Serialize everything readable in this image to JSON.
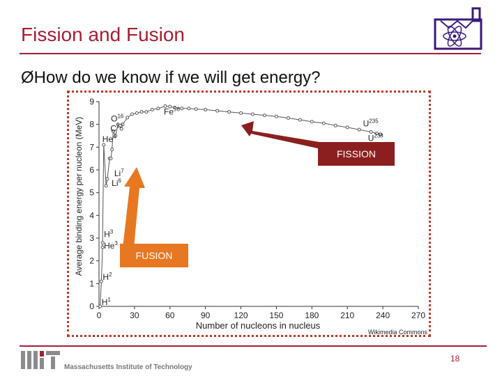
{
  "slide": {
    "title": "Fission and Fusion",
    "bullet_marker": "Ø",
    "bullet_text": "How do we know if we will get energy?",
    "attribution": "Wikimedia Commons",
    "page_number": "18",
    "footer_org": "Massachusetts Institute of Technology",
    "accent_color": "#a31f34"
  },
  "callouts": {
    "fission_label": "FISSION",
    "fusion_label": "FUSION",
    "fission_color": "#8b1f1f",
    "fusion_color": "#e87722"
  },
  "chart_data": {
    "type": "scatter",
    "xlabel": "Number of nucleons in nucleus",
    "ylabel": "Average binding energy per nucleon (MeV)",
    "xlim": [
      0,
      270
    ],
    "ylim": [
      0,
      9
    ],
    "xticks": [
      0,
      30,
      60,
      90,
      120,
      150,
      180,
      210,
      240,
      270
    ],
    "yticks": [
      0,
      1,
      2,
      3,
      4,
      5,
      6,
      7,
      8,
      9
    ],
    "x": [
      1,
      2,
      3,
      3,
      4,
      6,
      7,
      9,
      10,
      11,
      12,
      14,
      16,
      19,
      20,
      24,
      28,
      32,
      36,
      40,
      45,
      50,
      56,
      60,
      64,
      70,
      76,
      82,
      90,
      100,
      110,
      120,
      130,
      140,
      150,
      160,
      170,
      180,
      190,
      200,
      210,
      220,
      230,
      235,
      238
    ],
    "y": [
      0,
      1.1,
      2.6,
      2.8,
      7.1,
      5.3,
      5.6,
      6.5,
      6.5,
      6.9,
      7.7,
      7.5,
      8.0,
      7.8,
      8.0,
      8.3,
      8.45,
      8.5,
      8.55,
      8.55,
      8.65,
      8.7,
      8.8,
      8.78,
      8.74,
      8.7,
      8.7,
      8.67,
      8.65,
      8.6,
      8.55,
      8.5,
      8.45,
      8.4,
      8.35,
      8.28,
      8.2,
      8.12,
      8.05,
      7.95,
      7.87,
      7.77,
      7.67,
      7.6,
      7.57
    ],
    "point_labels": [
      {
        "text": "H",
        "sup": "1",
        "x": 1,
        "y": 0
      },
      {
        "text": "H",
        "sup": "2",
        "x": 2,
        "y": 1.1
      },
      {
        "text": "He",
        "sup": "3",
        "x": 3,
        "y": 2.6
      },
      {
        "text": "H",
        "sup": "3",
        "x": 3,
        "y": 2.8
      },
      {
        "text": "Li",
        "sup": "6",
        "x": 6,
        "y": 5.3
      },
      {
        "text": "Li",
        "sup": "7",
        "x": 7,
        "y": 5.6
      },
      {
        "text": "He",
        "sup": "4",
        "x": 4,
        "y": 7.1
      },
      {
        "text": "C",
        "sup": "12",
        "x": 12,
        "y": 7.7
      },
      {
        "text": "O",
        "sup": "16",
        "x": 16,
        "y": 8.0
      },
      {
        "text": "Fe",
        "sup": "56",
        "x": 56,
        "y": 8.8
      },
      {
        "text": "U",
        "sup": "235",
        "x": 235,
        "y": 7.6
      },
      {
        "text": "U",
        "sup": "238",
        "x": 238,
        "y": 7.57
      }
    ],
    "grid": false,
    "marker_color": "#555555"
  }
}
